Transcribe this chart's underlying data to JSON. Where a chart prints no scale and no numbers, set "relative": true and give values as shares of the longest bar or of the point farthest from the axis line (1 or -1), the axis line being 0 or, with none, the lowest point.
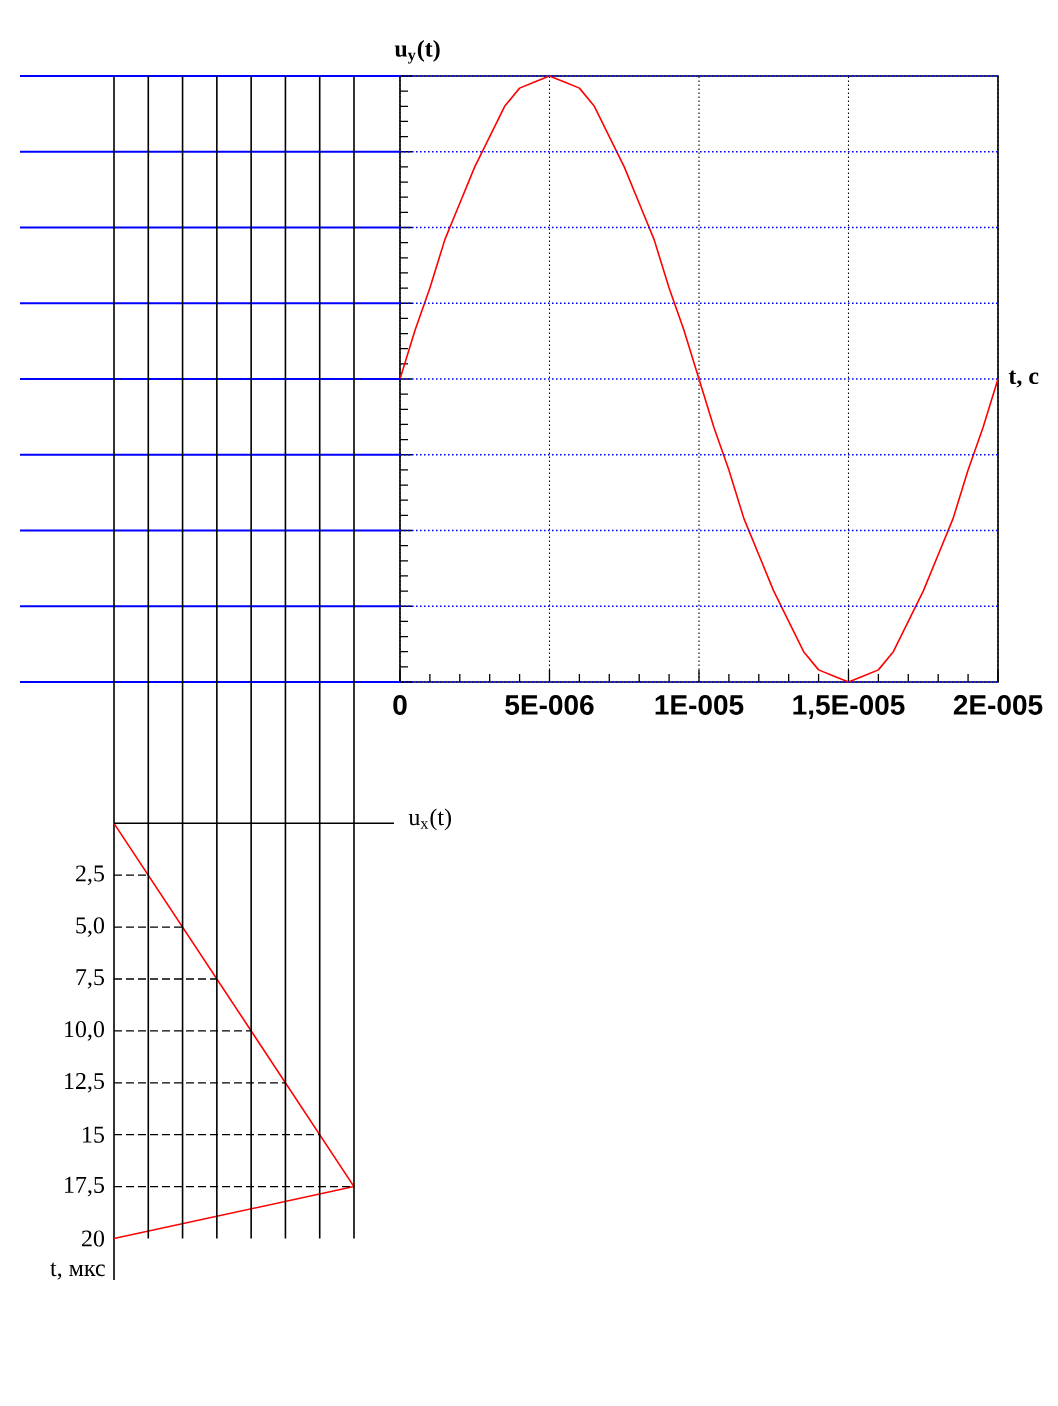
{
  "chart_data": [
    {
      "type": "line",
      "ylabel": "u$_{y}$(t)",
      "xlabel": "t, с",
      "relative": true,
      "xlim": [
        0,
        2e-05
      ],
      "xticks": [
        0,
        {
          "value": 5e-06,
          "label": "5E-006"
        },
        {
          "value": 1e-05,
          "label": "1E-005"
        },
        {
          "value": 1.5e-05,
          "label": "1,5E-005"
        },
        {
          "value": 2e-05,
          "label": "2E-005"
        }
      ],
      "grid": "x",
      "color": "#ff0000",
      "x": [
        0,
        5e-07,
        1e-06,
        1.5e-06,
        2e-06,
        2.5e-06,
        3e-06,
        3.5e-06,
        4e-06,
        4.5e-06,
        5e-06,
        5.5e-06,
        6e-06,
        6.5e-06,
        7e-06,
        7.5e-06,
        8e-06,
        8.5e-06,
        9e-06,
        9.5e-06,
        1e-05,
        1.05e-05,
        1.1e-05,
        1.15e-05,
        1.2e-05,
        1.25e-05,
        1.3e-05,
        1.35e-05,
        1.4e-05,
        1.45e-05,
        1.5e-05,
        1.55e-05,
        1.6e-05,
        1.65e-05,
        1.7e-05,
        1.75e-05,
        1.8e-05,
        1.85e-05,
        1.9e-05,
        1.95e-05,
        2e-05
      ],
      "values": [
        0.5,
        0.58,
        0.65,
        0.73,
        0.79,
        0.85,
        0.9,
        0.95,
        0.98,
        0.99,
        1,
        0.99,
        0.98,
        0.95,
        0.9,
        0.85,
        0.79,
        0.73,
        0.65,
        0.58,
        0.5,
        0.42,
        0.35,
        0.27,
        0.21,
        0.15,
        0.1,
        0.05,
        0.02,
        0.01,
        0,
        0.01,
        0.02,
        0.05,
        0.1,
        0.15,
        0.21,
        0.27,
        0.35,
        0.42,
        0.5
      ],
      "ref_lines": [
        {
          "axis": "y",
          "value": 0,
          "color": "#0000ff",
          "line_style": "dotted"
        },
        {
          "axis": "y",
          "value": 0.125,
          "color": "#0000ff",
          "line_style": "dotted"
        },
        {
          "axis": "y",
          "value": 0.25,
          "color": "#0000ff",
          "line_style": "dotted"
        },
        {
          "axis": "y",
          "value": 0.375,
          "color": "#0000ff",
          "line_style": "dotted"
        },
        {
          "axis": "y",
          "value": 0.5,
          "color": "#0000ff",
          "line_style": "dotted"
        },
        {
          "axis": "y",
          "value": 0.625,
          "color": "#0000ff",
          "line_style": "dotted"
        },
        {
          "axis": "y",
          "value": 0.75,
          "color": "#0000ff",
          "line_style": "dotted"
        },
        {
          "axis": "y",
          "value": 0.875,
          "color": "#0000ff",
          "line_style": "dotted"
        },
        {
          "axis": "y",
          "value": 1,
          "color": "#0000ff",
          "line_style": "dotted"
        }
      ]
    },
    {
      "type": "line",
      "orientation": "horizontal",
      "relative": true,
      "xlabel": "u$_{x}$(t)",
      "ylabel": "t, мкс",
      "ylim": [
        22,
        -36
      ],
      "yticks": [
        {
          "value": 2.5,
          "label": "2,5"
        },
        {
          "value": 5,
          "label": "5,0"
        },
        {
          "value": 7.5,
          "label": "7,5"
        },
        {
          "value": 10,
          "label": "10,0"
        },
        {
          "value": 12.5,
          "label": "12,5"
        },
        15,
        {
          "value": 17.5,
          "label": "17,5"
        },
        20
      ],
      "tick_labels": "y",
      "grid": "x",
      "color": "#ff0000",
      "x": [
        0,
        17.5,
        20
      ],
      "values": [
        0,
        1,
        0
      ],
      "ref_lines": [
        {
          "axis": "y",
          "value": 2.5,
          "line_style": "dashed"
        },
        {
          "axis": "y",
          "value": 5,
          "line_style": "dashed"
        },
        {
          "axis": "y",
          "value": 7.5,
          "line_style": "dashed"
        },
        {
          "axis": "y",
          "value": 10,
          "line_style": "dashed"
        },
        {
          "axis": "y",
          "value": 12.5,
          "line_style": "dashed"
        },
        {
          "axis": "y",
          "value": 15,
          "line_style": "dashed"
        },
        {
          "axis": "y",
          "value": 17.5,
          "line_style": "dashed"
        }
      ]
    }
  ]
}
